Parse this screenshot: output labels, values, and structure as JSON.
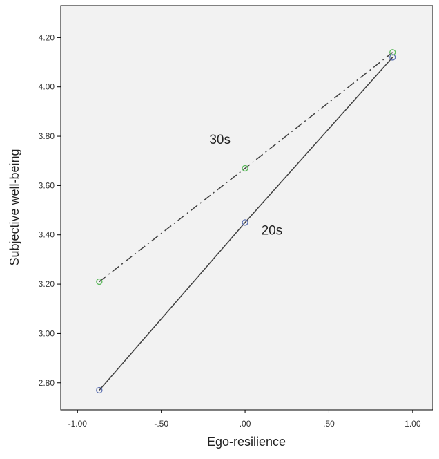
{
  "chart_data": {
    "type": "line",
    "title": "",
    "xlabel": "Ego-resilience",
    "ylabel": "Subjective well-being",
    "xlim": [
      -1.1,
      1.12
    ],
    "ylim": [
      2.69,
      4.33
    ],
    "x_ticks": [
      -1.0,
      -0.5,
      0.0,
      0.5,
      1.0
    ],
    "x_tick_labels": [
      "-1.00",
      "-.50",
      ".00",
      ".50",
      "1.00"
    ],
    "y_ticks": [
      2.8,
      3.0,
      3.2,
      3.4,
      3.6,
      3.8,
      4.0,
      4.2
    ],
    "y_tick_labels": [
      "2.80",
      "3.00",
      "3.20",
      "3.40",
      "3.60",
      "3.80",
      "4.00",
      "4.20"
    ],
    "grid": false,
    "background": "#f2f2f2",
    "series": [
      {
        "name": "30s",
        "x": [
          -0.87,
          0.0,
          0.88
        ],
        "y": [
          3.21,
          3.67,
          4.14
        ],
        "line_style": "dash-dot",
        "line_color": "#404040",
        "marker_color": "#5cb85c",
        "label_at": [
          -0.15,
          3.77
        ]
      },
      {
        "name": "20s",
        "x": [
          -0.87,
          0.0,
          0.88
        ],
        "y": [
          2.77,
          3.45,
          4.12
        ],
        "line_style": "solid",
        "line_color": "#404040",
        "marker_color": "#5b6fb0",
        "label_at": [
          0.16,
          3.4
        ]
      }
    ]
  }
}
